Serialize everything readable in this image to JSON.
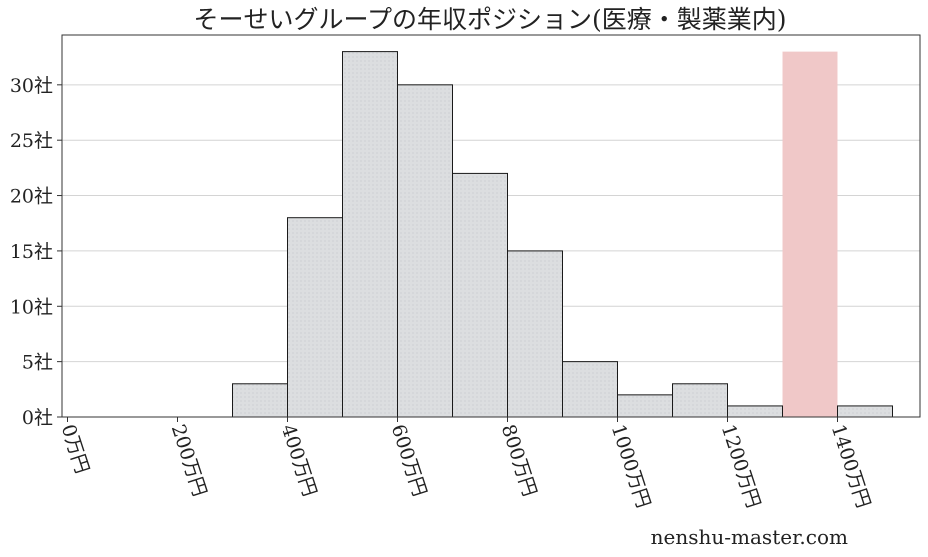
{
  "chart_data": {
    "type": "bar",
    "title": "そーせいグループの年収ポジション(医療・製薬業内)",
    "xlabel": "",
    "ylabel": "",
    "x_unit": "万円",
    "y_unit": "社",
    "bin_width": 100,
    "xlim": [
      -10,
      1550
    ],
    "ylim": [
      0,
      34.5
    ],
    "xticks": [
      0,
      200,
      400,
      600,
      800,
      1000,
      1200,
      1400
    ],
    "xtick_labels": [
      "0万円",
      "200万円",
      "400万円",
      "600万円",
      "800万円",
      "1000万円",
      "1200万円",
      "1400万円"
    ],
    "yticks": [
      0,
      5,
      10,
      15,
      20,
      25,
      30
    ],
    "ytick_labels": [
      "0社",
      "5社",
      "10社",
      "15社",
      "20社",
      "25社",
      "30社"
    ],
    "bins": [
      {
        "x0": 0,
        "x1": 100,
        "count": 0
      },
      {
        "x0": 100,
        "x1": 200,
        "count": 0
      },
      {
        "x0": 200,
        "x1": 300,
        "count": 0
      },
      {
        "x0": 300,
        "x1": 400,
        "count": 3
      },
      {
        "x0": 400,
        "x1": 500,
        "count": 18
      },
      {
        "x0": 500,
        "x1": 600,
        "count": 33
      },
      {
        "x0": 600,
        "x1": 700,
        "count": 30
      },
      {
        "x0": 700,
        "x1": 800,
        "count": 22
      },
      {
        "x0": 800,
        "x1": 900,
        "count": 15
      },
      {
        "x0": 900,
        "x1": 1000,
        "count": 5
      },
      {
        "x0": 1000,
        "x1": 1100,
        "count": 2
      },
      {
        "x0": 1100,
        "x1": 1200,
        "count": 3
      },
      {
        "x0": 1200,
        "x1": 1300,
        "count": 1
      },
      {
        "x0": 1300,
        "x1": 1400,
        "count": 0
      },
      {
        "x0": 1400,
        "x1": 1500,
        "count": 1
      }
    ],
    "highlight": {
      "x0": 1300,
      "x1": 1400,
      "value": 33
    },
    "grid": "horizontal",
    "legend": "none",
    "colors": {
      "bar_fill": "#dcdee0",
      "bar_edge": "#1a1a1a",
      "highlight_fill": "#f0c8c8",
      "grid": "#d4d4d4",
      "axis": "#333333"
    }
  },
  "watermark": "nenshu-master.com"
}
